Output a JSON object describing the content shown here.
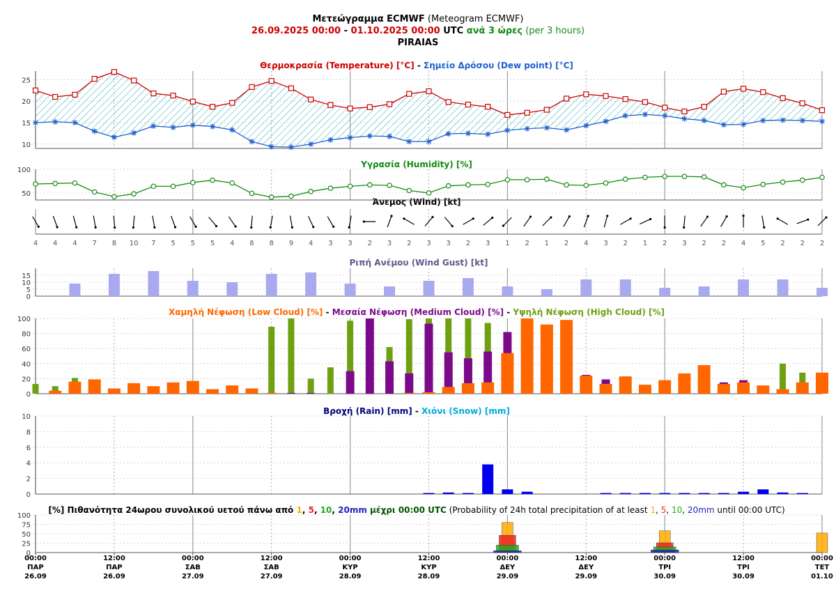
{
  "header": {
    "line1_bold": "Μετεώγραμμα ECMWF",
    "line1_rest": " (Meteogram ECMWF)",
    "range_start": "26.09.2025 00:00",
    "range_dash": " - ",
    "range_end": "01.10.2025 00:00",
    "utc": " UTC ",
    "step_gr": "ανά 3 ώρες",
    "step_en": " (per 3 hours)",
    "location": "PIRAIAS"
  },
  "colors": {
    "temp": "#cc0000",
    "dew": "#1f5fcc",
    "hatch": "#20a8b8",
    "humidity": "#128a12",
    "gust": "#a9a9f0",
    "gust_title": "#5a5a8a",
    "low": "#ff6600",
    "medium": "#7a0a8a",
    "high": "#6fa012",
    "rain": "#0000ee",
    "rain_title": "#000080",
    "snow": "#00aadd",
    "p1": "#ffaa00",
    "p5": "#ee2222",
    "p10": "#22aa22",
    "p20": "#2222bb",
    "grid_day": "#999999",
    "grid_dot": "#aaaaaa",
    "axis": "#555555"
  },
  "panels": {
    "temp_title": {
      "a": "Θερμοκρασία (Temperature) [°C]",
      "sep": " - ",
      "b": "Σημείο Δρόσου (Dew point) [°C]"
    },
    "hum_title": "Υγρασία (Humidity) [%]",
    "wind_title": "Άνεμος (Wind) [kt]",
    "gust_title": "Ριπή Ανέμου (Wind Gust) [kt]",
    "cloud_title": {
      "a": "Χαμηλή Νέφωση (Low Cloud) [%]",
      "sep1": " - ",
      "b": "Μεσαία Νέφωση (Medium Cloud) [%]",
      "sep2": " - ",
      "c": "Υψηλή Νέφωση (High Cloud) [%]"
    },
    "rain_title": {
      "a": "Βροχή (Rain) [mm]",
      "sep": " - ",
      "b": "Χιόνι (Snow) [mm]"
    },
    "prob_title": {
      "a": "[%] Πιθανότητα 24ωρου συνολικού υετού πάνω από ",
      "v1": "1",
      "c1": ", ",
      "v5": "5",
      "c2": ", ",
      "v10": "10",
      "c3": ", ",
      "v20": "20mm",
      "mid": " μέχρι 00:00 UTC",
      "en": " (Probability of 24h total precipitation of at least ",
      "e1": "1",
      "ec1": ", ",
      "e5": "5",
      "ec2": ", ",
      "e10": "10",
      "ec3": ", ",
      "e20": "20mm",
      "etail": " until 00:00 UTC)"
    }
  },
  "x_axis_labels": [
    {
      "time": "00:00",
      "day": "ΠΑΡ",
      "date": "26.09"
    },
    {
      "time": "12:00",
      "day": "ΠΑΡ",
      "date": "26.09"
    },
    {
      "time": "00:00",
      "day": "ΣΑΒ",
      "date": "27.09"
    },
    {
      "time": "12:00",
      "day": "ΣΑΒ",
      "date": "27.09"
    },
    {
      "time": "00:00",
      "day": "ΚΥΡ",
      "date": "28.09"
    },
    {
      "time": "12:00",
      "day": "ΚΥΡ",
      "date": "28.09"
    },
    {
      "time": "00:00",
      "day": "ΔΕΥ",
      "date": "29.09"
    },
    {
      "time": "12:00",
      "day": "ΔΕΥ",
      "date": "29.09"
    },
    {
      "time": "00:00",
      "day": "ΤΡΙ",
      "date": "30.09"
    },
    {
      "time": "12:00",
      "day": "ΤΡΙ",
      "date": "30.09"
    },
    {
      "time": "00:00",
      "day": "ΤΕΤ",
      "date": "01.10"
    }
  ],
  "chart_data": [
    {
      "type": "line",
      "title": "Θερμοκρασία (Temperature) [°C] - Σημείο Δρόσου (Dew point) [°C]",
      "x": [
        "26.09 00:00",
        "26.09 03:00",
        "26.09 06:00",
        "26.09 09:00",
        "26.09 12:00",
        "26.09 15:00",
        "26.09 18:00",
        "26.09 21:00",
        "27.09 00:00",
        "27.09 03:00",
        "27.09 06:00",
        "27.09 09:00",
        "27.09 12:00",
        "27.09 15:00",
        "27.09 18:00",
        "27.09 21:00",
        "28.09 00:00",
        "28.09 03:00",
        "28.09 06:00",
        "28.09 09:00",
        "28.09 12:00",
        "28.09 15:00",
        "28.09 18:00",
        "28.09 21:00",
        "29.09 00:00",
        "29.09 03:00",
        "29.09 06:00",
        "29.09 09:00",
        "29.09 12:00",
        "29.09 15:00",
        "29.09 18:00",
        "29.09 21:00",
        "30.09 00:00",
        "30.09 03:00",
        "30.09 06:00",
        "30.09 09:00",
        "30.09 12:00",
        "30.09 15:00",
        "30.09 18:00",
        "30.09 21:00",
        "01.10 00:00"
      ],
      "series": [
        {
          "name": "Θερμοκρασία (Temperature) [°C]",
          "values": [
            22.5,
            21.0,
            21.5,
            25.2,
            26.8,
            24.8,
            21.8,
            21.3,
            19.9,
            18.7,
            19.6,
            23.3,
            24.7,
            23.0,
            20.4,
            19.1,
            18.3,
            18.6,
            19.3,
            21.7,
            22.3,
            19.8,
            19.2,
            18.7,
            16.8,
            17.3,
            18.0,
            20.6,
            21.6,
            21.2,
            20.5,
            19.8,
            18.5,
            17.6,
            18.7,
            22.2,
            22.9,
            22.1,
            20.7,
            19.5,
            17.9
          ]
        },
        {
          "name": "Σημείο Δρόσου (Dew point) [°C]",
          "values": [
            15.0,
            15.2,
            15.0,
            13.0,
            11.6,
            12.6,
            14.2,
            13.9,
            14.4,
            14.1,
            13.3,
            10.6,
            9.4,
            9.3,
            10.0,
            11.0,
            11.5,
            11.9,
            11.8,
            10.6,
            10.6,
            12.4,
            12.5,
            12.3,
            13.2,
            13.6,
            13.8,
            13.3,
            14.3,
            15.3,
            16.6,
            16.9,
            16.6,
            15.9,
            15.5,
            14.5,
            14.6,
            15.5,
            15.6,
            15.5,
            15.3
          ]
        }
      ],
      "yticks": [
        10,
        15,
        20,
        25
      ],
      "ylim": [
        9,
        27
      ]
    },
    {
      "type": "line",
      "title": "Υγρασία (Humidity) [%]",
      "series": [
        {
          "name": "Υγρασία (Humidity) [%]",
          "values": [
            69,
            70,
            71,
            52,
            42,
            48,
            64,
            64,
            72,
            77,
            71,
            49,
            41,
            43,
            53,
            60,
            64,
            67,
            66,
            55,
            50,
            65,
            67,
            68,
            78,
            78,
            79,
            67,
            66,
            71,
            79,
            83,
            85,
            85,
            84,
            67,
            61,
            68,
            73,
            77,
            83
          ]
        }
      ],
      "yticks": [
        50,
        100
      ],
      "ylim": [
        35,
        100
      ]
    },
    {
      "type": "wind",
      "title": "Άνεμος (Wind) [kt]",
      "speed_kt": [
        4,
        4,
        4,
        7,
        8,
        10,
        7,
        5,
        5,
        5,
        4,
        8,
        8,
        9,
        4,
        3,
        3,
        2,
        3,
        2,
        3,
        3,
        2,
        3,
        1,
        2,
        1,
        2,
        4,
        3,
        2,
        1,
        2,
        3,
        2,
        2,
        4,
        5,
        2,
        2,
        2
      ],
      "direction_deg": [
        330,
        340,
        345,
        350,
        355,
        5,
        350,
        340,
        330,
        320,
        325,
        5,
        10,
        350,
        335,
        330,
        10,
        90,
        200,
        120,
        220,
        320,
        240,
        230,
        45,
        215,
        225,
        210,
        200,
        195,
        240,
        245,
        0,
        5,
        215,
        210,
        180,
        350,
        120,
        250,
        225
      ]
    },
    {
      "type": "bar",
      "title": "Ριπή Ανέμου (Wind Gust) [kt]",
      "values": [
        null,
        null,
        9,
        null,
        16,
        null,
        18,
        null,
        11,
        null,
        10,
        null,
        16,
        null,
        17,
        null,
        9,
        null,
        7,
        null,
        11,
        null,
        13,
        null,
        7,
        null,
        5,
        null,
        12,
        null,
        12,
        null,
        6,
        null,
        7,
        null,
        12,
        null,
        12,
        null,
        6
      ],
      "yticks": [
        0,
        5,
        10,
        15
      ],
      "ylim": [
        0,
        20
      ]
    },
    {
      "type": "bar",
      "title": "Χαμηλή Νέφωση (Low Cloud) [%] - Μεσαία Νέφωση (Medium Cloud) [%] - Υψηλή Νέφωση (High Cloud) [%]",
      "series": [
        {
          "name": "Χαμηλή Νέφωση (Low Cloud) [%]",
          "values": [
            0,
            4,
            16,
            19,
            7,
            14,
            10,
            15,
            17,
            6,
            11,
            7,
            1,
            0,
            0,
            0,
            0,
            0,
            0,
            1,
            2,
            9,
            14,
            15,
            54,
            100,
            92,
            98,
            24,
            13,
            23,
            12,
            18,
            27,
            38,
            13,
            15,
            11,
            6,
            15,
            28
          ]
        },
        {
          "name": "Μεσαία Νέφωση (Medium Cloud) [%]",
          "values": [
            0,
            0,
            0,
            0,
            0,
            0,
            0,
            0,
            0,
            0,
            0,
            0,
            0,
            1,
            1,
            0,
            30,
            100,
            43,
            27,
            93,
            55,
            47,
            56,
            82,
            0,
            0,
            0,
            25,
            19,
            0,
            0,
            0,
            0,
            0,
            15,
            18,
            0,
            0,
            0,
            0
          ]
        },
        {
          "name": "Υψηλή Νέφωση (High Cloud) [%]",
          "values": [
            13,
            10,
            21,
            0,
            0,
            0,
            0,
            0,
            0,
            0,
            0,
            0,
            89,
            100,
            20,
            35,
            97,
            0,
            62,
            99,
            100,
            100,
            100,
            94,
            0,
            0,
            0,
            0,
            0,
            0,
            0,
            0,
            0,
            0,
            0,
            0,
            0,
            0,
            40,
            28,
            0
          ]
        }
      ],
      "yticks": [
        0,
        20,
        40,
        60,
        80,
        100
      ],
      "ylim": [
        0,
        100
      ]
    },
    {
      "type": "bar",
      "title": "Βροχή (Rain) [mm] - Χιόνι (Snow) [mm]",
      "series": [
        {
          "name": "Βροχή (Rain) [mm]",
          "values": [
            0,
            0,
            0,
            0,
            0,
            0,
            0,
            0,
            0,
            0,
            0,
            0,
            0,
            0,
            0,
            0,
            0,
            0,
            0,
            0,
            0.1,
            0.2,
            0.1,
            3.8,
            0.6,
            0.3,
            0,
            0,
            0,
            0.1,
            0.1,
            0.1,
            0.1,
            0.1,
            0.1,
            0.1,
            0.3,
            0.6,
            0.2,
            0.1,
            0
          ]
        },
        {
          "name": "Χιόνι (Snow) [mm]",
          "values": [
            0,
            0,
            0,
            0,
            0,
            0,
            0,
            0,
            0,
            0,
            0,
            0,
            0,
            0,
            0,
            0,
            0,
            0,
            0,
            0,
            0,
            0,
            0,
            0,
            0,
            0,
            0,
            0,
            0,
            0,
            0,
            0,
            0,
            0,
            0,
            0,
            0,
            0,
            0,
            0,
            0
          ]
        }
      ],
      "yticks": [
        0,
        2,
        4,
        6,
        8,
        10
      ],
      "ylim": [
        0,
        10
      ]
    },
    {
      "type": "bar",
      "title": "[%] Πιθανότητα 24ωρου συνολικού υετού πάνω από 1, 5, 10, 20mm μέχρι 00:00 UTC",
      "x": [
        "29.09 00:00",
        "30.09 00:00",
        "01.10 00:00"
      ],
      "series": [
        {
          "name": "1",
          "values": [
            80,
            58,
            52
          ]
        },
        {
          "name": "5",
          "values": [
            46,
            26,
            0
          ]
        },
        {
          "name": "10",
          "values": [
            20,
            15,
            0
          ]
        },
        {
          "name": "20mm",
          "values": [
            5,
            7,
            0
          ]
        }
      ],
      "yticks": [
        0,
        25,
        50,
        75,
        100
      ],
      "ylim": [
        0,
        100
      ]
    }
  ]
}
